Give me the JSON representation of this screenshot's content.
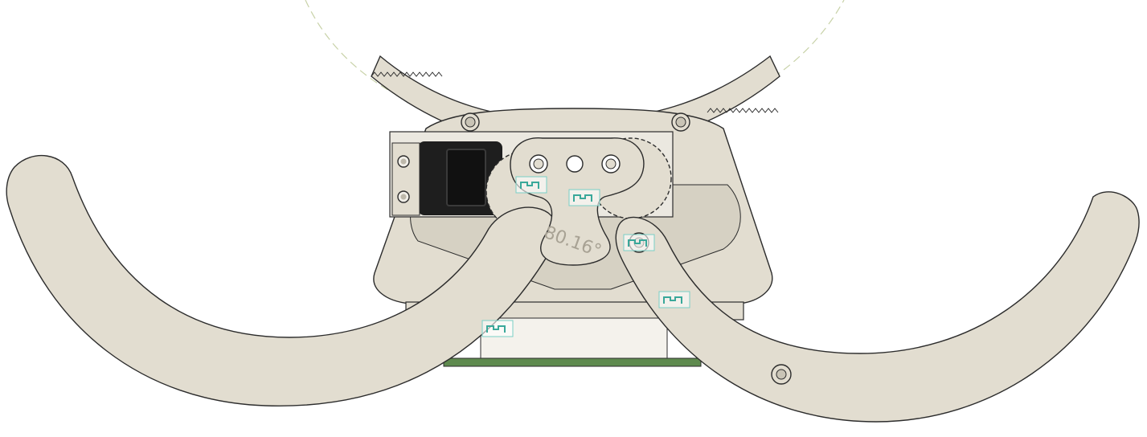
{
  "viewport": {
    "background": "#ffffff",
    "part_color": "#e2ddd0",
    "part_shade": "#d6d1c3",
    "outline_color": "#2c2c2c",
    "servo_color": "#1e1e1e",
    "pcb_color": "#5e8a4e",
    "sketch_line_color": "#c8d2a8",
    "constraint_icon_color": "#7ad0c6"
  },
  "annotations": {
    "angle_dimension": "80.16°"
  },
  "icons": [
    "joint-icon",
    "joint-icon",
    "joint-icon",
    "joint-icon",
    "joint-icon"
  ]
}
